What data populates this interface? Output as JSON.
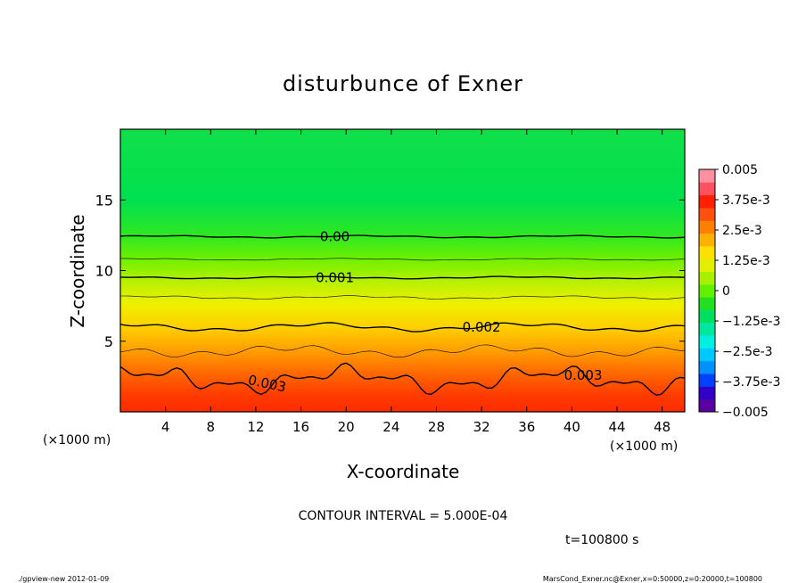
{
  "chart_data": {
    "type": "heatmap",
    "title": "disturbunce of Exner",
    "xlabel": "X-coordinate",
    "ylabel": "Z-coordinate",
    "x_unit_label": "(×1000 m)",
    "y_unit_label": "(×1000 m)",
    "xlim": [
      0,
      50
    ],
    "ylim": [
      0,
      20
    ],
    "x_ticks": [
      "4",
      "8",
      "12",
      "16",
      "20",
      "24",
      "28",
      "32",
      "36",
      "40",
      "44",
      "48"
    ],
    "x_tick_values": [
      4,
      8,
      12,
      16,
      20,
      24,
      28,
      32,
      36,
      40,
      44,
      48
    ],
    "y_ticks": [
      "5",
      "10",
      "15"
    ],
    "y_tick_values": [
      5,
      10,
      15
    ],
    "contour_labels": [
      {
        "text": "0.00",
        "x": 19,
        "z": 12.4
      },
      {
        "text": "0.001",
        "x": 19,
        "z": 9.5
      },
      {
        "text": "0.002",
        "x": 32,
        "z": 6.0
      },
      {
        "text": "0.003",
        "x": 13,
        "z": 2.0
      },
      {
        "text": "0.003",
        "x": 41,
        "z": 2.6
      }
    ],
    "colorbar": {
      "min": -0.005,
      "max": 0.005,
      "labels": [
        "0.005",
        "3.75e-3",
        "2.5e-3",
        "1.25e-3",
        "0",
        "−1.25e-3",
        "−2.5e-3",
        "−3.75e-3",
        "−0.005"
      ],
      "label_values": [
        0.005,
        0.00375,
        0.0025,
        0.00125,
        0,
        -0.00125,
        -0.0025,
        -0.00375,
        -0.005
      ],
      "colors": [
        "#5a00a0",
        "#3000c8",
        "#0040ff",
        "#0090ff",
        "#00c8ff",
        "#00f0e0",
        "#00e8a0",
        "#00e060",
        "#20e020",
        "#60f000",
        "#a8f000",
        "#e0f000",
        "#ffe000",
        "#ffb000",
        "#ff8000",
        "#ff5010",
        "#ff2000",
        "#ff5060",
        "#ff90a0"
      ]
    },
    "contour_interval_text": "CONTOUR INTERVAL = 5.000E-04",
    "time_text": "t=100800 s"
  },
  "footer": {
    "left": "./gpview-new   2012-01-09",
    "right": "MarsCond_Exner.nc@Exner,x=0:50000,z=0:20000,t=100800"
  }
}
